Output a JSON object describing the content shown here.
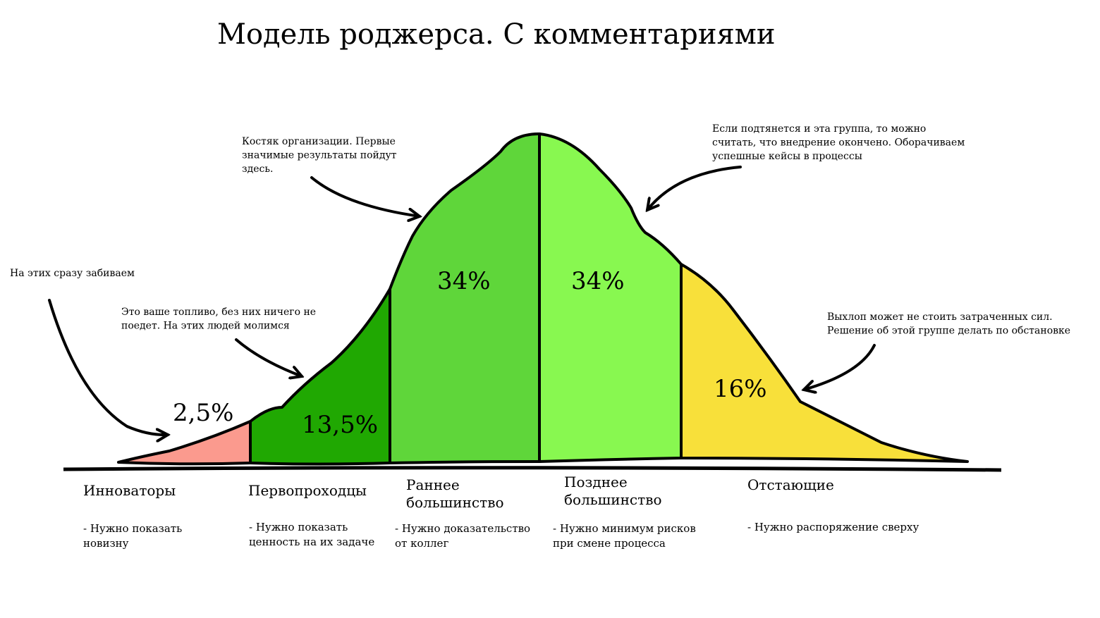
{
  "title": "Модель роджерса. С комментариями",
  "segments": [
    {
      "percent": "2,5%",
      "label": [
        "Инноваторы"
      ],
      "need": [
        "- Нужно показать",
        "новизну"
      ]
    },
    {
      "percent": "13,5%",
      "label": [
        "Первопроходцы"
      ],
      "need": [
        "- Нужно показать",
        "ценность на их задаче"
      ]
    },
    {
      "percent": "34%",
      "label": [
        "Раннее",
        "большинство"
      ],
      "need": [
        "- Нужно доказательство",
        "от коллег"
      ]
    },
    {
      "percent": "34%",
      "label": [
        "Позднее",
        "большинство"
      ],
      "need": [
        "- Нужно минимум рисков",
        "при смене процесса"
      ]
    },
    {
      "percent": "16%",
      "label": [
        "Отстающие"
      ],
      "need": [
        "- Нужно распоряжение сверху"
      ]
    }
  ],
  "comments": [
    [
      "На этих сразу забиваем"
    ],
    [
      "Это ваше топливо, без них ничего не",
      "поедет. На этих людей молимся"
    ],
    [
      "Костяк организации. Первые",
      "значимые результаты пойдут",
      "здесь."
    ],
    [
      "Если подтянется и эта группа, то можно",
      "считать, что внедрение окончено. Оборачиваем",
      "успешные кейсы в процессы"
    ],
    [
      "Выхлоп может не стоить затраченных сил.",
      "Решение об этой группе делать по обстановке"
    ]
  ]
}
